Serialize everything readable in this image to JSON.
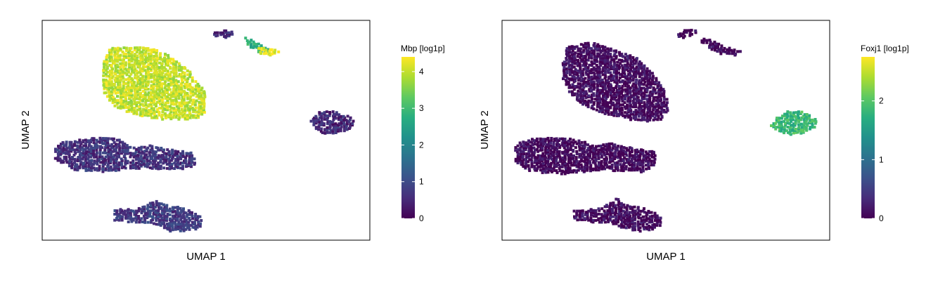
{
  "chart_data": [
    {
      "type": "scatter",
      "subtype": "hexbin-embedding",
      "xlabel": "UMAP 1",
      "ylabel": "UMAP 2",
      "xlim": [
        0,
        100
      ],
      "ylim": [
        0,
        100
      ],
      "colorbar": {
        "label": "Mbp [log1p]",
        "min": 0,
        "max": 4.4,
        "ticks": [
          0,
          1,
          2,
          3,
          4
        ],
        "palette": "viridis"
      },
      "clusters": [
        {
          "name": "upper-left large cluster",
          "value": 4.0,
          "polygon": [
            [
              21,
              88
            ],
            [
              31,
              88
            ],
            [
              38,
              85
            ],
            [
              45,
              77
            ],
            [
              50,
              67
            ],
            [
              50,
              56
            ],
            [
              44,
              55
            ],
            [
              36,
              55
            ],
            [
              28,
              57
            ],
            [
              22,
              61
            ],
            [
              19,
              66
            ],
            [
              18,
              74
            ],
            [
              19,
              82
            ]
          ]
        },
        {
          "name": "middle-left cluster",
          "value": 0.65,
          "polygon": [
            [
              4,
              44
            ],
            [
              9,
              45
            ],
            [
              16,
              47
            ],
            [
              23,
              46
            ],
            [
              28,
              42
            ],
            [
              33,
              43
            ],
            [
              40,
              41
            ],
            [
              46,
              40
            ],
            [
              47,
              34
            ],
            [
              42,
              32
            ],
            [
              36,
              32
            ],
            [
              32,
              33
            ],
            [
              26,
              32
            ],
            [
              18,
              31
            ],
            [
              10,
              32
            ],
            [
              4,
              36
            ],
            [
              4,
              40
            ]
          ]
        },
        {
          "name": "lower-left cluster",
          "value": 0.75,
          "polygon": [
            [
              22,
              14
            ],
            [
              29,
              14
            ],
            [
              33,
              17
            ],
            [
              35,
              18
            ],
            [
              38,
              16
            ],
            [
              45,
              14
            ],
            [
              49,
              10
            ],
            [
              48,
              5
            ],
            [
              43,
              4
            ],
            [
              39,
              4
            ],
            [
              36,
              6
            ],
            [
              33,
              8
            ],
            [
              28,
              8
            ],
            [
              22,
              9
            ],
            [
              22,
              12
            ]
          ]
        },
        {
          "name": "right small cluster",
          "value": 0.5,
          "polygon": [
            [
              84,
              58
            ],
            [
              89,
              59
            ],
            [
              94,
              56
            ],
            [
              96,
              53
            ],
            [
              92,
              49
            ],
            [
              86,
              48
            ],
            [
              84,
              50
            ],
            [
              82,
              54
            ]
          ]
        },
        {
          "name": "top small cluster",
          "value": 0.5,
          "polygon": [
            [
              53,
              95
            ],
            [
              56,
              96
            ],
            [
              59,
              94
            ],
            [
              57,
              92
            ],
            [
              54,
              92
            ],
            [
              52,
              93
            ]
          ]
        },
        {
          "name": "top thin extension",
          "value": 2.8,
          "polygon": [
            [
              62,
              92
            ],
            [
              64,
              91
            ],
            [
              67,
              89
            ],
            [
              70,
              86
            ],
            [
              68,
              85
            ],
            [
              65,
              86
            ],
            [
              63,
              88
            ],
            [
              62,
              90
            ]
          ]
        },
        {
          "name": "top thin extension tip",
          "value": 4.3,
          "polygon": [
            [
              66,
              88
            ],
            [
              70,
              87
            ],
            [
              73,
              86
            ],
            [
              70,
              84
            ],
            [
              66,
              85
            ]
          ]
        }
      ]
    },
    {
      "type": "scatter",
      "subtype": "hexbin-embedding",
      "xlabel": "UMAP 1",
      "ylabel": "UMAP 2",
      "xlim": [
        0,
        100
      ],
      "ylim": [
        0,
        100
      ],
      "colorbar": {
        "label": "Foxj1 [log1p]",
        "min": 0,
        "max": 2.75,
        "ticks": [
          0,
          1,
          2
        ],
        "palette": "viridis"
      },
      "clusters": [
        {
          "name": "upper-left large cluster",
          "value": 0.08,
          "polygon": [
            [
              20,
              88
            ],
            [
              27,
              90
            ],
            [
              34,
              87
            ],
            [
              41,
              83
            ],
            [
              46,
              76
            ],
            [
              50,
              67
            ],
            [
              51,
              60
            ],
            [
              49,
              55
            ],
            [
              44,
              54
            ],
            [
              38,
              55
            ],
            [
              30,
              58
            ],
            [
              24,
              62
            ],
            [
              20,
              68
            ],
            [
              18,
              76
            ],
            [
              19,
              83
            ]
          ]
        },
        {
          "name": "middle-left cluster",
          "value": 0.05,
          "polygon": [
            [
              4,
              44
            ],
            [
              9,
              46
            ],
            [
              16,
              47
            ],
            [
              23,
              46
            ],
            [
              28,
              43
            ],
            [
              33,
              44
            ],
            [
              40,
              42
            ],
            [
              47,
              40
            ],
            [
              47,
              34
            ],
            [
              43,
              31
            ],
            [
              36,
              31
            ],
            [
              31,
              32
            ],
            [
              25,
              31
            ],
            [
              18,
              30
            ],
            [
              9,
              31
            ],
            [
              4,
              35
            ],
            [
              4,
              40
            ]
          ]
        },
        {
          "name": "lower-left cluster",
          "value": 0.1,
          "polygon": [
            [
              22,
              14
            ],
            [
              29,
              14
            ],
            [
              33,
              17
            ],
            [
              35,
              19
            ],
            [
              38,
              16
            ],
            [
              45,
              14
            ],
            [
              49,
              10
            ],
            [
              48,
              5
            ],
            [
              43,
              4
            ],
            [
              39,
              4
            ],
            [
              36,
              6
            ],
            [
              33,
              8
            ],
            [
              28,
              8
            ],
            [
              22,
              9
            ],
            [
              22,
              12
            ]
          ]
        },
        {
          "name": "right small cluster",
          "value": 1.85,
          "polygon": [
            [
              84,
              56
            ],
            [
              87,
              59
            ],
            [
              91,
              59
            ],
            [
              95,
              56
            ],
            [
              97,
              53
            ],
            [
              93,
              49
            ],
            [
              88,
              48
            ],
            [
              85,
              49
            ],
            [
              82,
              52
            ]
          ]
        },
        {
          "name": "top small cluster",
          "value": 0.05,
          "polygon": [
            [
              54,
              95
            ],
            [
              57,
              96
            ],
            [
              60,
              95
            ],
            [
              58,
              93
            ],
            [
              55,
              92
            ],
            [
              53,
              93
            ]
          ]
        },
        {
          "name": "top thin extension",
          "value": 0.05,
          "polygon": [
            [
              60,
              92
            ],
            [
              64,
              91
            ],
            [
              68,
              88
            ],
            [
              73,
              86
            ],
            [
              71,
              84
            ],
            [
              66,
              85
            ],
            [
              62,
              88
            ]
          ]
        }
      ]
    }
  ]
}
